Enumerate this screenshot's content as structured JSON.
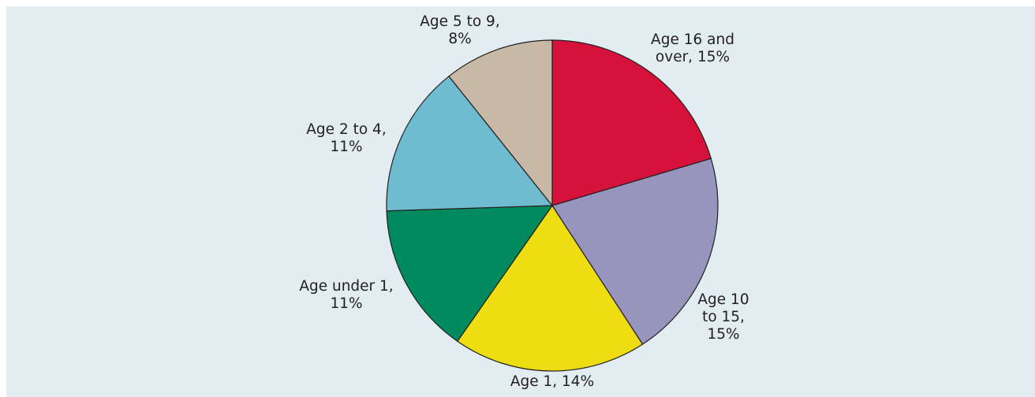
{
  "chart_data": {
    "type": "pie",
    "title": "",
    "legend": "none",
    "slices": [
      {
        "label_lines": [
          "Age 16 and",
          "over, 15%"
        ],
        "value": 20,
        "percent_label": "15%",
        "color": "#d6123a"
      },
      {
        "label_lines": [
          "Age 10",
          "to 15,",
          "15%"
        ],
        "value": 20,
        "percent_label": "15%",
        "color": "#9795be"
      },
      {
        "label_lines": [
          "Age 1, 14%"
        ],
        "value": 18.5,
        "percent_label": "14%",
        "color": "#eddd12"
      },
      {
        "label_lines": [
          "Age under 1,",
          "11%"
        ],
        "value": 14.5,
        "percent_label": "11%",
        "color": "#008a5e"
      },
      {
        "label_lines": [
          "Age 2 to 4,",
          "11%"
        ],
        "value": 14.5,
        "percent_label": "11%",
        "color": "#6fbbcf"
      },
      {
        "label_lines": [
          "Age 5 to 9,",
          "8%"
        ],
        "value": 10.5,
        "percent_label": "8%",
        "color": "#c7b9a6"
      }
    ]
  }
}
